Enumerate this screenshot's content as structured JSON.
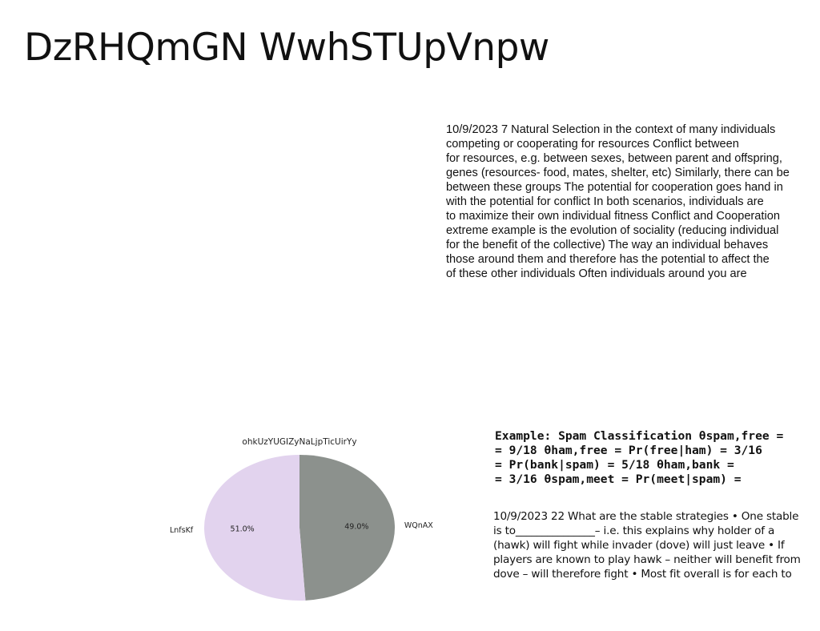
{
  "title": "DzRHQmGN WwhSTUpVnpw",
  "text_block_1": {
    "lines": [
      "10/9/2023 7 Natural Selection in the context of many individuals",
      "competing or cooperating for resources Conflict between",
      "for resources, e.g. between sexes, between parent and offspring,",
      "genes (resources- food, mates, shelter, etc) Similarly, there can be",
      "between these groups The potential for cooperation goes hand in",
      "with the potential for conflict In both scenarios, individuals are",
      "to maximize their own individual fitness Conflict and Cooperation",
      "extreme example is the evolution of sociality (reducing individual",
      "for the benefit of the collective) The way an individual behaves",
      "those around them and therefore has the potential to affect the",
      "of these other individuals Often individuals around you are"
    ]
  },
  "heading_block": {
    "lines": [
      "Example: Spam Classification θspam,free =",
      "= 9/18 θham,free = Pr(free|ham) = 3/16",
      "= Pr(bank|spam) = 5/18 θham,bank =",
      "= 3/16 θspam,meet = Pr(meet|spam) ="
    ]
  },
  "text_block_2": {
    "lines": [
      "10/9/2023 22 What are the stable strategies • One stable",
      "is to_______________– i.e. this explains why holder of a",
      "(hawk) will fight while invader (dove) will just leave • If",
      "players are known to play hawk – neither will benefit from",
      "dove – will therefore fight • Most fit overall is for each to"
    ]
  },
  "chart_data": {
    "type": "pie",
    "title": "ohkUzYUGIZyNaLjpTicUirYy",
    "slices": [
      {
        "label": "WQnAX",
        "value": 49.0,
        "pct_label": "49.0%",
        "color": "#8c918d"
      },
      {
        "label": "LnfsKf",
        "value": 51.0,
        "pct_label": "51.0%",
        "color": "#e2d3ee"
      }
    ],
    "start_angle_deg": 90,
    "direction": "clockwise"
  }
}
